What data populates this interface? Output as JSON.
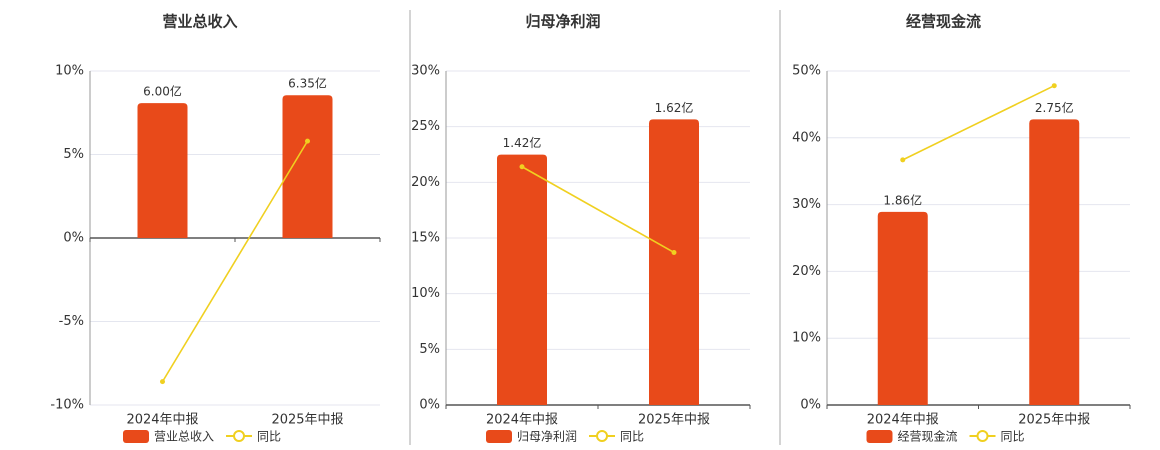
{
  "chart_data": [
    {
      "type": "bar",
      "title": "营业总收入",
      "categories": [
        "2024年中报",
        "2025年中报"
      ],
      "ylim": [
        -10,
        10
      ],
      "yticks": [
        {
          "value": -10,
          "label": "-10%"
        },
        {
          "value": -5,
          "label": "-5%"
        },
        {
          "value": 0,
          "label": "0%"
        },
        {
          "value": 5,
          "label": "5%"
        },
        {
          "value": 10,
          "label": "10%"
        }
      ],
      "grid": true,
      "series": [
        {
          "name": "营业总收入",
          "color": "#e84a1a",
          "values": [
            6.0,
            6.35
          ],
          "value_labels": [
            "6.00亿",
            "6.35亿"
          ],
          "axis": "y2"
        },
        {
          "name": "同比",
          "type": "line",
          "color": "#f0d020",
          "values": [
            -8.6,
            5.8
          ]
        }
      ]
    },
    {
      "type": "bar",
      "title": "归母净利润",
      "categories": [
        "2024年中报",
        "2025年中报"
      ],
      "ylim": [
        0,
        30
      ],
      "yticks": [
        {
          "value": 0,
          "label": "0%"
        },
        {
          "value": 5,
          "label": "5%"
        },
        {
          "value": 10,
          "label": "10%"
        },
        {
          "value": 15,
          "label": "15%"
        },
        {
          "value": 20,
          "label": "20%"
        },
        {
          "value": 25,
          "label": "25%"
        },
        {
          "value": 30,
          "label": "30%"
        }
      ],
      "grid": true,
      "series": [
        {
          "name": "归母净利润",
          "color": "#e84a1a",
          "values": [
            1.42,
            1.62
          ],
          "value_labels": [
            "1.42亿",
            "1.62亿"
          ],
          "axis": "y2"
        },
        {
          "name": "同比",
          "type": "line",
          "color": "#f0d020",
          "values": [
            21.4,
            13.7
          ]
        }
      ]
    },
    {
      "type": "bar",
      "title": "经营现金流",
      "categories": [
        "2024年中报",
        "2025年中报"
      ],
      "ylim": [
        0,
        50
      ],
      "yticks": [
        {
          "value": 0,
          "label": "0%"
        },
        {
          "value": 10,
          "label": "10%"
        },
        {
          "value": 20,
          "label": "20%"
        },
        {
          "value": 30,
          "label": "30%"
        },
        {
          "value": 40,
          "label": "40%"
        },
        {
          "value": 50,
          "label": "50%"
        }
      ],
      "grid": true,
      "series": [
        {
          "name": "经营现金流",
          "color": "#e84a1a",
          "values": [
            1.86,
            2.75
          ],
          "value_labels": [
            "1.86亿",
            "2.75亿"
          ],
          "axis": "y2"
        },
        {
          "name": "同比",
          "type": "line",
          "color": "#f0d020",
          "values": [
            36.7,
            47.8
          ]
        }
      ]
    }
  ]
}
